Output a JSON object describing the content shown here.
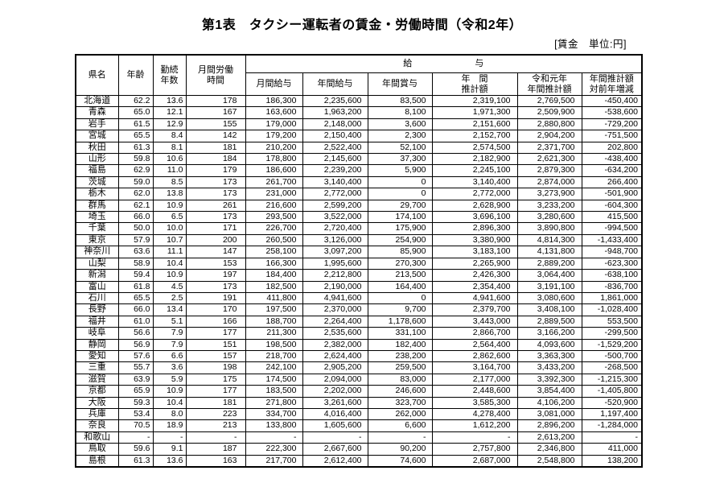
{
  "title": "第1表　タクシー運転者の賃金・労働時間（令和2年）",
  "unit_label": "[賃金　単位:円]",
  "table": {
    "headers": {
      "prefecture": "県名",
      "age": "年齢",
      "tenure": "勤続\n年数",
      "monthly_hours": "月間労働\n時間",
      "salary_group": "給与",
      "monthly_salary": "月間給与",
      "annual_salary": "年間給与",
      "annual_bonus": "年間賞与",
      "annual_estimate": "年　間\n推計額",
      "prev_year_estimate": "令和元年\n年間推計額",
      "yoy_change": "年間推計額\n対前年増減"
    },
    "rows": [
      [
        "北海道",
        "62.2",
        "13.6",
        "178",
        "186,300",
        "2,235,600",
        "83,500",
        "2,319,100",
        "2,769,500",
        "-450,400"
      ],
      [
        "青森",
        "65.0",
        "12.1",
        "167",
        "163,600",
        "1,963,200",
        "8,100",
        "1,971,300",
        "2,509,900",
        "-538,600"
      ],
      [
        "岩手",
        "61.5",
        "12.9",
        "155",
        "179,000",
        "2,148,000",
        "3,600",
        "2,151,600",
        "2,880,800",
        "-729,200"
      ],
      [
        "宮城",
        "65.5",
        "8.4",
        "142",
        "179,200",
        "2,150,400",
        "2,300",
        "2,152,700",
        "2,904,200",
        "-751,500"
      ],
      [
        "秋田",
        "61.3",
        "8.1",
        "181",
        "210,200",
        "2,522,400",
        "52,100",
        "2,574,500",
        "2,371,700",
        "202,800"
      ],
      [
        "山形",
        "59.8",
        "10.6",
        "184",
        "178,800",
        "2,145,600",
        "37,300",
        "2,182,900",
        "2,621,300",
        "-438,400"
      ],
      [
        "福島",
        "62.9",
        "11.0",
        "179",
        "186,600",
        "2,239,200",
        "5,900",
        "2,245,100",
        "2,879,300",
        "-634,200"
      ],
      [
        "茨城",
        "59.0",
        "8.5",
        "173",
        "261,700",
        "3,140,400",
        "0",
        "3,140,400",
        "2,874,000",
        "266,400"
      ],
      [
        "栃木",
        "62.0",
        "13.8",
        "173",
        "231,000",
        "2,772,000",
        "0",
        "2,772,000",
        "3,273,900",
        "-501,900"
      ],
      [
        "群馬",
        "62.1",
        "10.9",
        "261",
        "216,600",
        "2,599,200",
        "29,700",
        "2,628,900",
        "3,233,200",
        "-604,300"
      ],
      [
        "埼玉",
        "66.0",
        "6.5",
        "173",
        "293,500",
        "3,522,000",
        "174,100",
        "3,696,100",
        "3,280,600",
        "415,500"
      ],
      [
        "千葉",
        "50.0",
        "10.0",
        "171",
        "226,700",
        "2,720,400",
        "175,900",
        "2,896,300",
        "3,890,800",
        "-994,500"
      ],
      [
        "東京",
        "57.9",
        "10.7",
        "200",
        "260,500",
        "3,126,000",
        "254,900",
        "3,380,900",
        "4,814,300",
        "-1,433,400"
      ],
      [
        "神奈川",
        "63.6",
        "11.1",
        "147",
        "258,100",
        "3,097,200",
        "85,900",
        "3,183,100",
        "4,131,800",
        "-948,700"
      ],
      [
        "山梨",
        "58.9",
        "10.4",
        "153",
        "166,300",
        "1,995,600",
        "270,300",
        "2,265,900",
        "2,889,200",
        "-623,300"
      ],
      [
        "新潟",
        "59.4",
        "10.9",
        "197",
        "184,400",
        "2,212,800",
        "213,500",
        "2,426,300",
        "3,064,400",
        "-638,100"
      ],
      [
        "富山",
        "61.8",
        "4.5",
        "173",
        "182,500",
        "2,190,000",
        "164,400",
        "2,354,400",
        "3,191,100",
        "-836,700"
      ],
      [
        "石川",
        "65.5",
        "2.5",
        "191",
        "411,800",
        "4,941,600",
        "0",
        "4,941,600",
        "3,080,600",
        "1,861,000"
      ],
      [
        "長野",
        "66.0",
        "13.4",
        "170",
        "197,500",
        "2,370,000",
        "9,700",
        "2,379,700",
        "3,408,100",
        "-1,028,400"
      ],
      [
        "福井",
        "61.0",
        "5.1",
        "166",
        "188,700",
        "2,264,400",
        "1,178,600",
        "3,443,000",
        "2,889,500",
        "553,500"
      ],
      [
        "岐阜",
        "56.6",
        "7.9",
        "177",
        "211,300",
        "2,535,600",
        "331,100",
        "2,866,700",
        "3,166,200",
        "-299,500"
      ],
      [
        "静岡",
        "56.9",
        "7.9",
        "151",
        "198,500",
        "2,382,000",
        "182,400",
        "2,564,400",
        "4,093,600",
        "-1,529,200"
      ],
      [
        "愛知",
        "57.6",
        "6.6",
        "157",
        "218,700",
        "2,624,400",
        "238,200",
        "2,862,600",
        "3,363,300",
        "-500,700"
      ],
      [
        "三重",
        "55.7",
        "3.6",
        "198",
        "242,100",
        "2,905,200",
        "259,500",
        "3,164,700",
        "3,433,200",
        "-268,500"
      ],
      [
        "滋賀",
        "63.9",
        "5.9",
        "175",
        "174,500",
        "2,094,000",
        "83,000",
        "2,177,000",
        "3,392,300",
        "-1,215,300"
      ],
      [
        "京都",
        "65.9",
        "10.9",
        "177",
        "183,500",
        "2,202,000",
        "246,600",
        "2,448,600",
        "3,854,400",
        "-1,405,800"
      ],
      [
        "大阪",
        "59.3",
        "10.4",
        "181",
        "271,800",
        "3,261,600",
        "323,700",
        "3,585,300",
        "4,106,200",
        "-520,900"
      ],
      [
        "兵庫",
        "53.4",
        "8.0",
        "223",
        "334,700",
        "4,016,400",
        "262,000",
        "4,278,400",
        "3,081,000",
        "1,197,400"
      ],
      [
        "奈良",
        "70.5",
        "18.9",
        "213",
        "133,800",
        "1,605,600",
        "6,600",
        "1,612,200",
        "2,896,200",
        "-1,284,000"
      ],
      [
        "和歌山",
        "-",
        "-",
        "-",
        "-",
        "-",
        "-",
        "-",
        "2,613,200",
        "-"
      ],
      [
        "鳥取",
        "59.6",
        "9.1",
        "187",
        "222,300",
        "2,667,600",
        "90,200",
        "2,757,800",
        "2,346,800",
        "411,000"
      ],
      [
        "島根",
        "61.3",
        "13.6",
        "163",
        "217,700",
        "2,612,400",
        "74,600",
        "2,687,000",
        "2,548,800",
        "138,200"
      ]
    ]
  }
}
